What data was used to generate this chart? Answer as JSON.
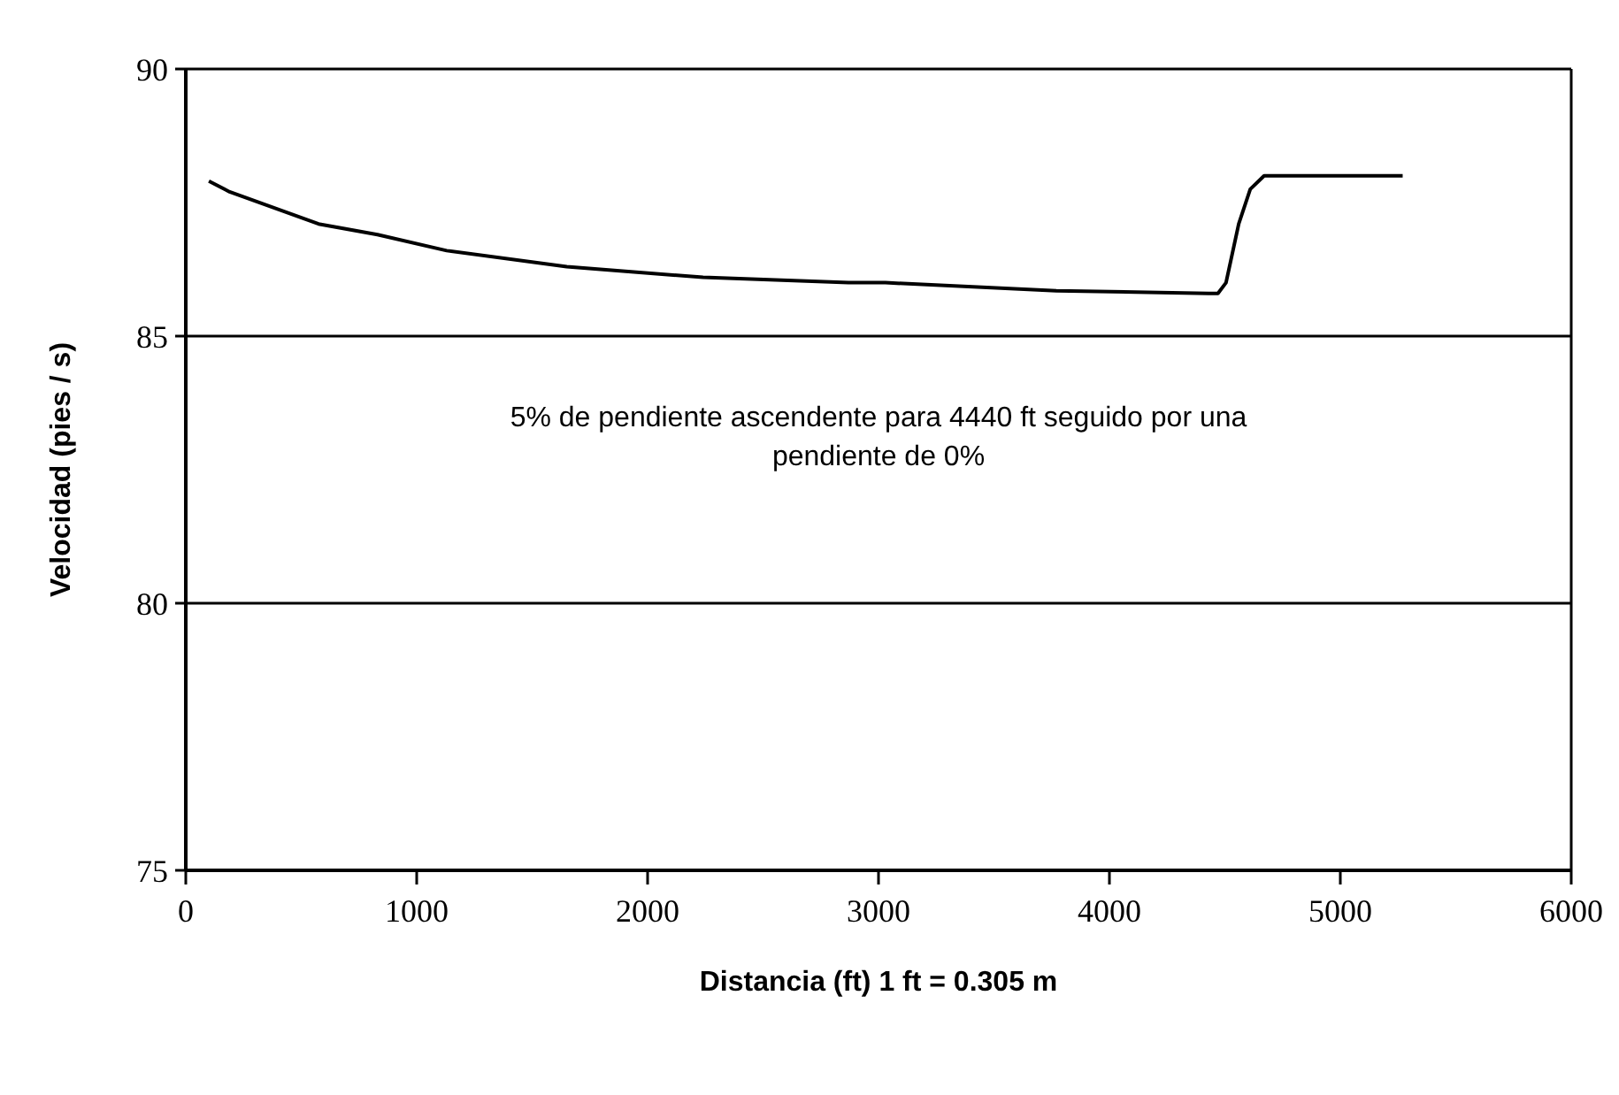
{
  "chart_data": {
    "type": "line",
    "xlabel": "Distancia (ft)  1 ft = 0.305 m",
    "ylabel": "Velocidad (pies / s)",
    "annotations": [
      "5% de pendiente ascendente para 4440 ft seguido por una pendiente de 0%"
    ],
    "x": [
      100,
      190,
      575,
      830,
      1130,
      1650,
      2240,
      2870,
      3030,
      3770,
      4430,
      4470,
      4505,
      4560,
      4610,
      4670,
      4750,
      5270
    ],
    "series": [
      {
        "color": "#000000",
        "values": [
          87.9,
          87.7,
          87.1,
          86.9,
          86.6,
          86.3,
          86.1,
          86.0,
          86.0,
          85.85,
          85.8,
          85.8,
          86.0,
          87.1,
          87.75,
          88.0,
          88.0,
          88.0
        ]
      }
    ],
    "xlim": [
      0,
      6000
    ],
    "xticks": [
      0,
      1000,
      2000,
      3000,
      4000,
      5000,
      6000
    ],
    "ylim": [
      75,
      90
    ],
    "yticks": [
      75,
      80,
      85,
      90
    ],
    "grid": "y",
    "marker": "none",
    "line_style": "solid"
  }
}
